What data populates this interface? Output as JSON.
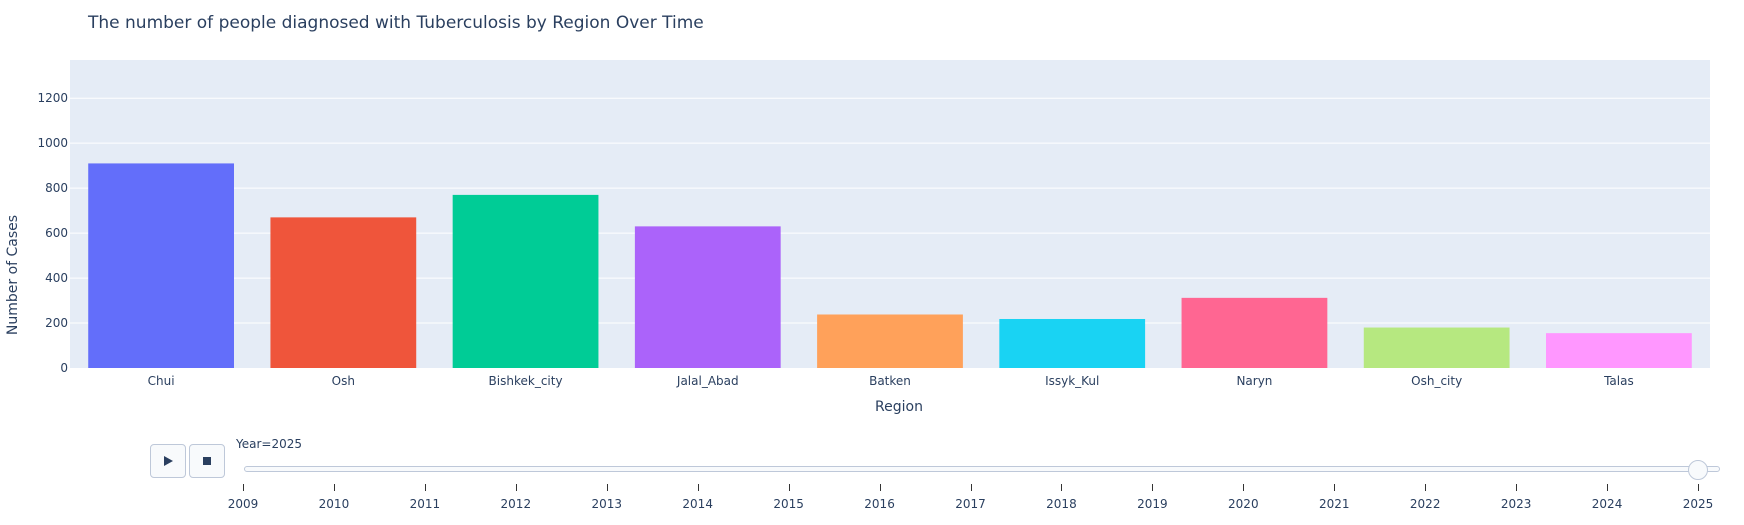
{
  "chart_data": {
    "type": "bar",
    "title": "The number of people diagnosed with Tuberculosis by Region Over Time",
    "xlabel": "Region",
    "ylabel": "Number of Cases",
    "categories": [
      "Chui",
      "Osh",
      "Bishkek_city",
      "Jalal_Abad",
      "Batken",
      "Issyk_Kul",
      "Naryn",
      "Osh_city",
      "Talas"
    ],
    "values": [
      910,
      670,
      770,
      630,
      238,
      218,
      312,
      180,
      155
    ],
    "colors": [
      "#636efa",
      "#ef553b",
      "#00cc96",
      "#ab63fa",
      "#ffa15a",
      "#19d3f3",
      "#ff6692",
      "#b6e880",
      "#ff97ff"
    ],
    "ylim": [
      0,
      1370
    ],
    "yticks": [
      0,
      200,
      400,
      600,
      800,
      1000,
      1200
    ],
    "grid": true,
    "plot_bg": "#e5ecf6"
  },
  "slider": {
    "prefix": "Year=",
    "current": "2025",
    "years": [
      "2009",
      "2010",
      "2011",
      "2012",
      "2013",
      "2014",
      "2015",
      "2016",
      "2017",
      "2018",
      "2019",
      "2020",
      "2021",
      "2022",
      "2023",
      "2024",
      "2025"
    ]
  },
  "controls": {
    "play_icon": "play-icon",
    "stop_icon": "stop-icon"
  }
}
